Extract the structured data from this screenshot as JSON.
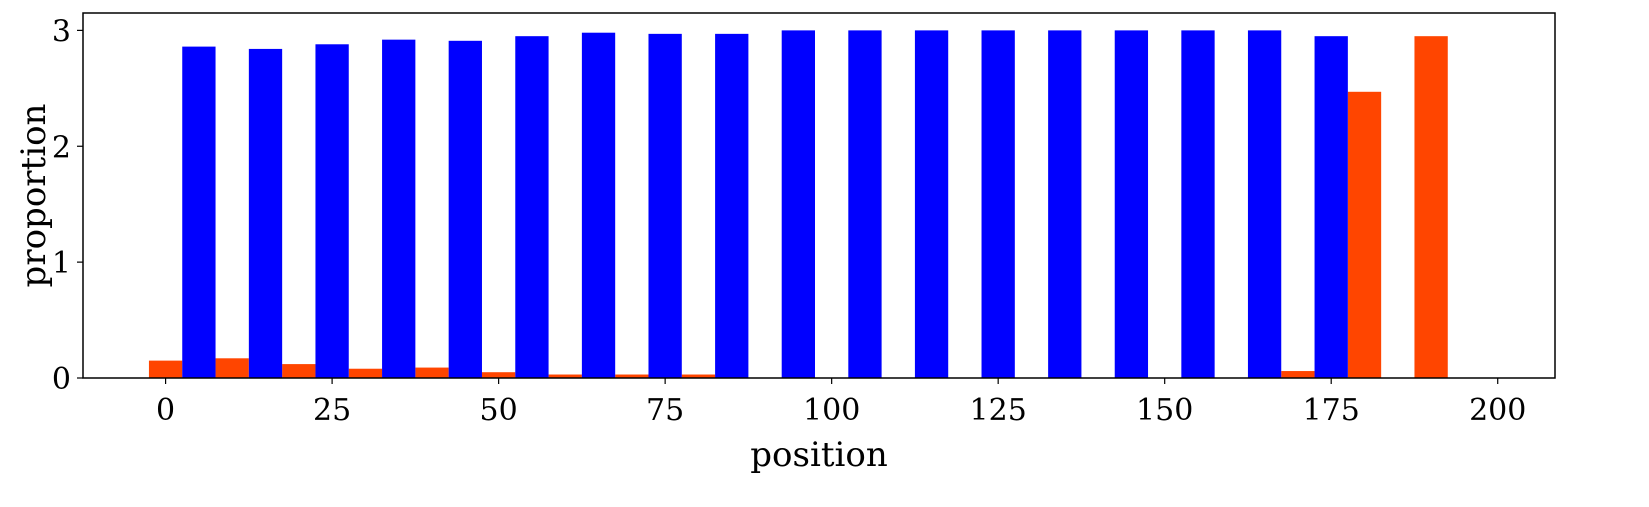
{
  "chart_data": {
    "type": "bar",
    "xlabel": "position",
    "ylabel": "proportion",
    "xlim": [
      -12.4,
      208.6
    ],
    "ylim": [
      0,
      3.15
    ],
    "x_ticks": [
      0,
      25,
      50,
      75,
      100,
      125,
      150,
      175,
      200
    ],
    "y_ticks": [
      0,
      1,
      2,
      3
    ],
    "bar_width": 5,
    "grid": false,
    "legend": "none",
    "series": [
      {
        "color": "#ff4500",
        "x": [
          0,
          10,
          20,
          30,
          40,
          50,
          60,
          70,
          80,
          90,
          100,
          110,
          120,
          130,
          140,
          150,
          160,
          170,
          180,
          190
        ],
        "values": [
          0.15,
          0.17,
          0.12,
          0.08,
          0.09,
          0.05,
          0.03,
          0.03,
          0.03,
          0,
          0,
          0,
          0,
          0,
          0,
          0,
          0,
          0.06,
          2.47,
          2.95
        ]
      },
      {
        "color": "#0000ff",
        "x": [
          5,
          15,
          25,
          35,
          45,
          55,
          65,
          75,
          85,
          95,
          105,
          115,
          125,
          135,
          145,
          155,
          165,
          175
        ],
        "values": [
          2.86,
          2.84,
          2.88,
          2.92,
          2.91,
          2.95,
          2.98,
          2.97,
          2.97,
          3.0,
          3.0,
          3.0,
          3.0,
          3.0,
          3.0,
          3.0,
          3.0,
          2.95
        ]
      }
    ]
  }
}
